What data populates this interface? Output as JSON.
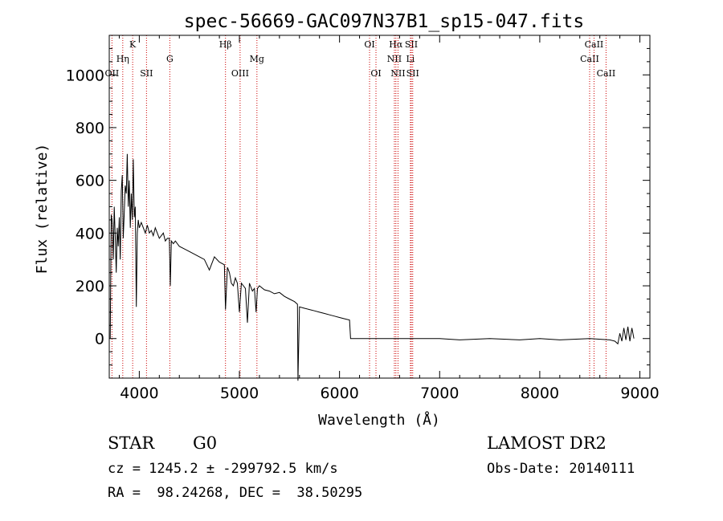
{
  "chart_data": {
    "type": "line",
    "title": "spec-56669-GAC097N37B1_sp15-047.fits",
    "xlabel": "Wavelength (Å)",
    "ylabel": "Flux (relative)",
    "xlim": [
      3700,
      9100
    ],
    "ylim": [
      -150,
      1150
    ],
    "xticks": [
      4000,
      5000,
      6000,
      7000,
      8000,
      9000
    ],
    "yticks": [
      0,
      200,
      400,
      600,
      800,
      1000
    ],
    "grid": false,
    "line_color": "#000000",
    "marker_color": "#cc0000",
    "series": [
      {
        "x": [
          3710,
          3720,
          3730,
          3740,
          3750,
          3760,
          3770,
          3780,
          3790,
          3800,
          3810,
          3820,
          3830,
          3840,
          3850,
          3860,
          3870,
          3880,
          3890,
          3900,
          3910,
          3920,
          3930,
          3940,
          3950,
          3960,
          3970,
          3980,
          3990,
          4000,
          4020,
          4040,
          4060,
          4080,
          4100,
          4120,
          4140,
          4160,
          4180,
          4200,
          4220,
          4240,
          4260,
          4280,
          4300,
          4310,
          4320,
          4340,
          4360,
          4380,
          4400,
          4450,
          4500,
          4550,
          4600,
          4650,
          4700,
          4750,
          4800,
          4850,
          4861,
          4880,
          4900,
          4920,
          4940,
          4960,
          4980,
          5000,
          5020,
          5040,
          5060,
          5080,
          5100,
          5110,
          5130,
          5150,
          5167,
          5180,
          5200,
          5250,
          5300,
          5350,
          5400,
          5450,
          5500,
          5550,
          5580,
          5585,
          5600,
          5650,
          5700,
          5750,
          5800,
          5850,
          5900,
          5950,
          6000,
          6050,
          6100,
          6110,
          6200,
          6500,
          7000,
          7200,
          7500,
          7800,
          8000,
          8200,
          8500,
          8700,
          8750,
          8780,
          8800,
          8820,
          8840,
          8860,
          8880,
          8900,
          8920,
          8940
        ],
        "y": [
          0,
          470,
          440,
          300,
          500,
          380,
          250,
          420,
          350,
          460,
          300,
          560,
          620,
          380,
          480,
          580,
          550,
          700,
          500,
          600,
          420,
          550,
          450,
          680,
          460,
          500,
          120,
          400,
          450,
          420,
          440,
          420,
          400,
          430,
          400,
          410,
          390,
          420,
          400,
          380,
          390,
          400,
          370,
          380,
          380,
          200,
          370,
          360,
          370,
          360,
          350,
          340,
          330,
          320,
          310,
          300,
          260,
          310,
          290,
          280,
          110,
          270,
          250,
          210,
          200,
          230,
          210,
          100,
          210,
          200,
          190,
          60,
          210,
          200,
          180,
          190,
          100,
          190,
          200,
          185,
          180,
          170,
          175,
          160,
          150,
          140,
          130,
          -160,
          120,
          115,
          110,
          105,
          100,
          95,
          90,
          85,
          80,
          75,
          70,
          0,
          0,
          0,
          0,
          -5,
          0,
          -5,
          0,
          -5,
          0,
          -5,
          -10,
          -20,
          20,
          -10,
          40,
          -5,
          45,
          -10,
          40,
          0
        ]
      }
    ],
    "lines": [
      {
        "label": "OII",
        "wl": 3727,
        "row": 2
      },
      {
        "label": "Hη",
        "wl": 3835,
        "row": 1
      },
      {
        "label": "K",
        "wl": 3934,
        "row": 0
      },
      {
        "label": "SII",
        "wl": 4072,
        "row": 2
      },
      {
        "label": "G",
        "wl": 4305,
        "row": 1
      },
      {
        "label": "Hβ",
        "wl": 4861,
        "row": 0
      },
      {
        "label": "OIII",
        "wl": 5007,
        "row": 2
      },
      {
        "label": "Mg",
        "wl": 5175,
        "row": 1
      },
      {
        "label": "OI",
        "wl": 6300,
        "row": 0
      },
      {
        "label": "OI",
        "wl": 6364,
        "row": 2
      },
      {
        "label": "Hα",
        "wl": 6563,
        "row": 0
      },
      {
        "label": "NII",
        "wl": 6548,
        "row": 1
      },
      {
        "label": "NII",
        "wl": 6584,
        "row": 2
      },
      {
        "label": "SII",
        "wl": 6717,
        "row": 0
      },
      {
        "label": "Li",
        "wl": 6708,
        "row": 1
      },
      {
        "label": "SII",
        "wl": 6731,
        "row": 2
      },
      {
        "label": "CaII",
        "wl": 8498,
        "row": 1
      },
      {
        "label": "CaII",
        "wl": 8542,
        "row": 0
      },
      {
        "label": "CaII",
        "wl": 8662,
        "row": 2
      }
    ]
  },
  "info": {
    "class_label": "STAR",
    "subclass": "G0",
    "survey": "LAMOST DR2",
    "cz": "cz = 1245.2 ± -299792.5 km/s",
    "obs_date": "Obs-Date: 20140111",
    "coords": "RA =  98.24268, DEC =  38.50295"
  }
}
